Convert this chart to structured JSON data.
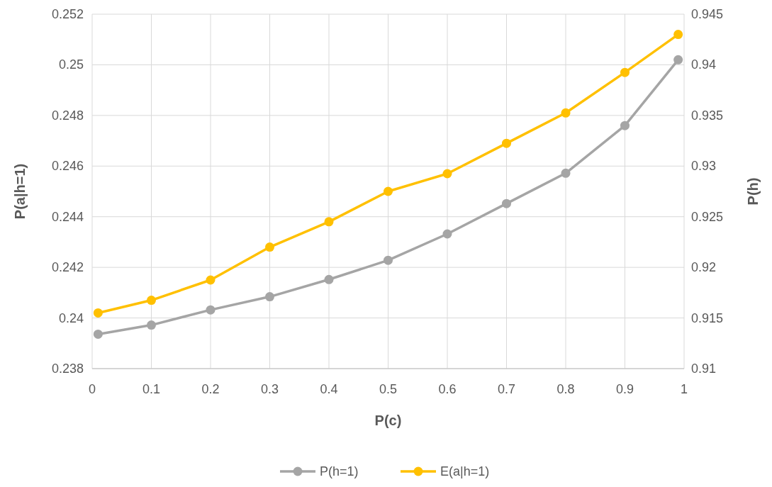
{
  "chart_data": {
    "type": "line",
    "xlabel": "P(c)",
    "ylabel": "P(a|h=1)",
    "y2label": "P(h)",
    "xlim": [
      0,
      1
    ],
    "xticks": [
      0,
      0.1,
      0.2,
      0.3,
      0.4,
      0.5,
      0.6,
      0.7,
      0.8,
      0.9,
      1
    ],
    "ylim": [
      0.238,
      0.252
    ],
    "yticks": [
      0.238,
      0.24,
      0.242,
      0.244,
      0.246,
      0.248,
      0.25,
      0.252
    ],
    "y2lim": [
      0.91,
      0.945
    ],
    "y2ticks": [
      0.91,
      0.915,
      0.92,
      0.925,
      0.93,
      0.935,
      0.94,
      0.945
    ],
    "grid": true,
    "legend": "bottom",
    "marker": "circle",
    "series": [
      {
        "name": "P(h=1)",
        "color": "#a5a5a5",
        "axis": "y2",
        "x": [
          0.01,
          0.1,
          0.2,
          0.3,
          0.4,
          0.5,
          0.6,
          0.7,
          0.8,
          0.9,
          0.99
        ],
        "values": [
          0.9134,
          0.9143,
          0.9158,
          0.9171,
          0.9188,
          0.9207,
          0.9233,
          0.9263,
          0.9293,
          0.934,
          0.9405
        ]
      },
      {
        "name": "E(a|h=1)",
        "color": "#ffc000",
        "axis": "y",
        "x": [
          0.01,
          0.1,
          0.2,
          0.3,
          0.4,
          0.5,
          0.6,
          0.7,
          0.8,
          0.9,
          0.99
        ],
        "values": [
          0.2402,
          0.2407,
          0.2415,
          0.2428,
          0.2438,
          0.245,
          0.2457,
          0.2469,
          0.2481,
          0.2497,
          0.2512
        ]
      }
    ]
  }
}
